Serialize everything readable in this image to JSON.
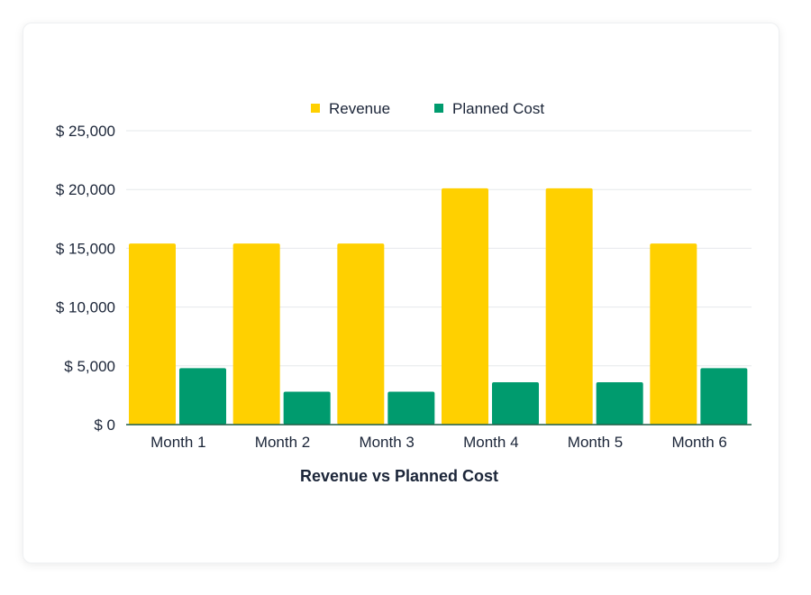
{
  "chart_data": {
    "type": "bar",
    "title": "Revenue vs Planned Cost",
    "xlabel": "Revenue vs Planned Cost",
    "ylabel": "",
    "categories": [
      "Month 1",
      "Month 2",
      "Month 3",
      "Month 4",
      "Month 5",
      "Month 6"
    ],
    "series": [
      {
        "name": "Revenue",
        "color": "#FFD000",
        "values": [
          15400,
          15400,
          15400,
          20100,
          20100,
          15400
        ]
      },
      {
        "name": "Planned Cost",
        "color": "#009B6E",
        "values": [
          4800,
          2800,
          2800,
          3600,
          3600,
          4800
        ]
      }
    ],
    "ylim": [
      0,
      25000
    ],
    "yticks": [
      0,
      5000,
      10000,
      15000,
      20000,
      25000
    ],
    "ytick_labels": [
      "$ 0",
      "$ 5,000",
      "$ 10,000",
      "$ 15,000",
      "$ 20,000",
      "$ 25,000"
    ],
    "grid": true,
    "legend_position": "top-center"
  }
}
